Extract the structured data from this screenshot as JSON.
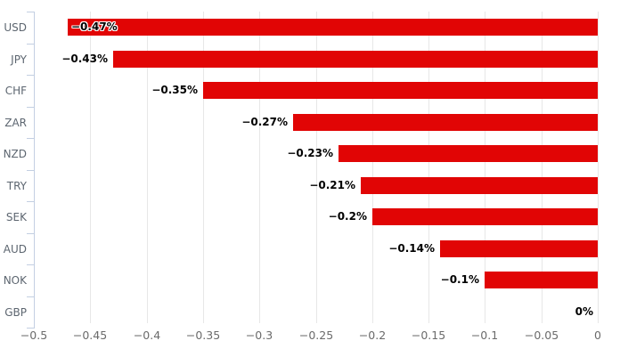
{
  "chart_data": {
    "type": "bar",
    "orientation": "horizontal",
    "title": "",
    "xlabel": "",
    "ylabel": "",
    "categories": [
      "USD",
      "JPY",
      "CHF",
      "ZAR",
      "NZD",
      "TRY",
      "SEK",
      "AUD",
      "NOK",
      "GBP"
    ],
    "values": [
      -0.47,
      -0.43,
      -0.35,
      -0.27,
      -0.23,
      -0.21,
      -0.2,
      -0.14,
      -0.1,
      0
    ],
    "value_labels": [
      "−0.47%",
      "−0.43%",
      "−0.35%",
      "−0.27%",
      "−0.23%",
      "−0.21%",
      "−0.2%",
      "−0.14%",
      "−0.1%",
      "0%"
    ],
    "xlim": [
      -0.5,
      0
    ],
    "x_ticks": [
      -0.5,
      -0.45,
      -0.4,
      -0.35,
      -0.3,
      -0.25,
      -0.2,
      -0.15,
      -0.1,
      -0.05,
      0
    ],
    "x_tick_labels": [
      "−0.5",
      "−0.45",
      "−0.4",
      "−0.35",
      "−0.3",
      "−0.25",
      "−0.2",
      "−0.15",
      "−0.1",
      "−0.05",
      "0"
    ],
    "grid": true,
    "legend": false,
    "colors": {
      "bar": "#e10505",
      "value_label": "#000000",
      "category_label": "#5d6670",
      "tick_label": "#6b6b6b",
      "axis_line": "#c3cfe2",
      "gridline": "#e7e7e7",
      "background": "#ffffff"
    }
  }
}
